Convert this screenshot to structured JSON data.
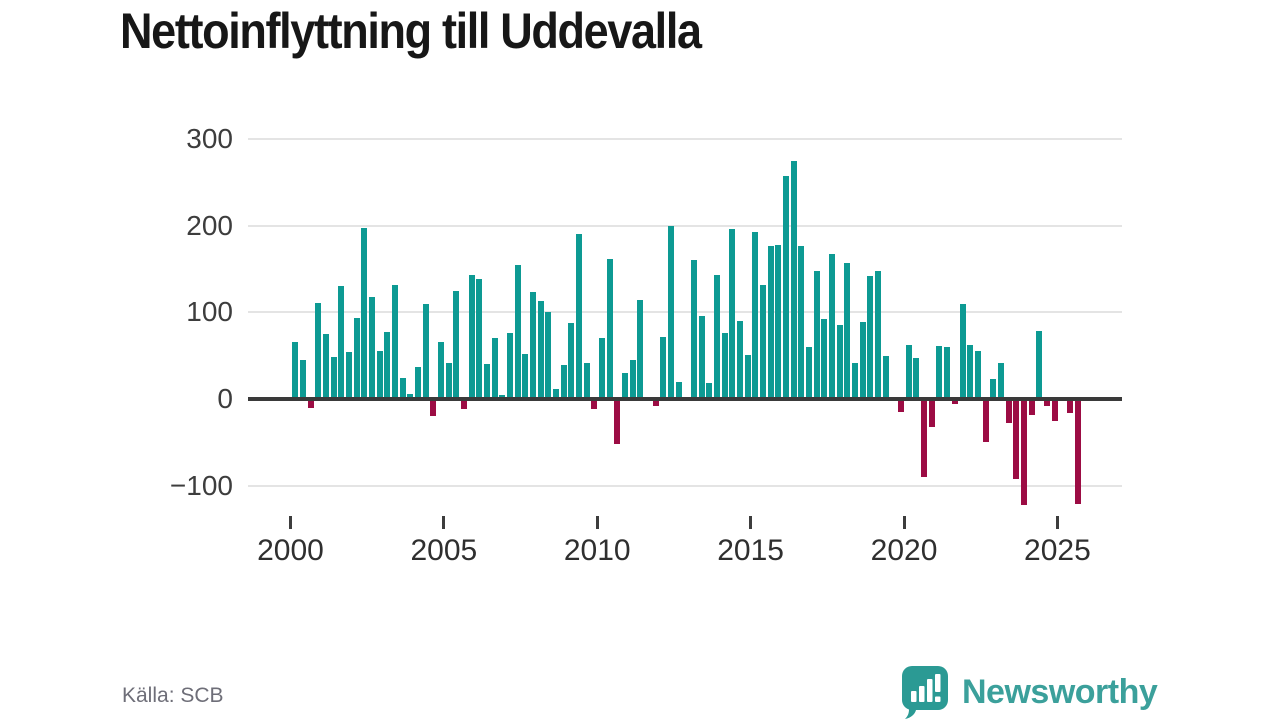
{
  "title_text": "Nettoinflyttning till Uddevalla",
  "source_text": "Källa: SCB",
  "branding": {
    "logo_text": "Newsworthy",
    "logo_color": "#2b9a94",
    "wordmark_color": "#3ba09b"
  },
  "colors": {
    "positive_bar": "#0d9a93",
    "negative_bar": "#9c0c44",
    "axis_line": "#3a3a3a",
    "gridline": "#e4e4e4"
  },
  "chart_data": {
    "type": "bar",
    "title": "Nettoinflyttning till Uddevalla",
    "source": "Källa: SCB",
    "frequency": "quarterly",
    "start_period": "2000-Q1",
    "end_period": "2025-Q3",
    "grid": "horizontal",
    "ylim": [
      -140,
      330
    ],
    "x_ticks": {
      "labels": [
        "2000",
        "2005",
        "2010",
        "2015",
        "2020",
        "2025"
      ]
    },
    "y_ticks": {
      "values": [
        300,
        200,
        100,
        0,
        -100
      ],
      "labels": [
        "300",
        "200",
        "100",
        "0",
        "−100"
      ]
    },
    "series": [
      {
        "name": "Nettoinflyttning",
        "values": [
          66,
          45,
          -10,
          111,
          75,
          49,
          130,
          54,
          94,
          197,
          118,
          55,
          77,
          132,
          24,
          6,
          37,
          110,
          -20,
          66,
          42,
          125,
          -12,
          143,
          139,
          40,
          70,
          5,
          76,
          155,
          52,
          124,
          113,
          100,
          12,
          39,
          88,
          191,
          42,
          -12,
          70,
          162,
          -52,
          30,
          45,
          114,
          0,
          -8,
          72,
          200,
          20,
          0,
          161,
          96,
          18,
          143,
          76,
          196,
          90,
          51,
          193,
          132,
          177,
          178,
          257,
          275,
          177,
          60,
          148,
          92,
          167,
          85,
          157,
          42,
          89,
          142,
          148,
          50,
          0,
          -15,
          62,
          47,
          -90,
          -32,
          61,
          60,
          -6,
          110,
          62,
          55,
          -50,
          23,
          41,
          -28,
          -92,
          -122,
          -18,
          78,
          -8,
          -25,
          0,
          -16,
          -121
        ]
      }
    ]
  }
}
